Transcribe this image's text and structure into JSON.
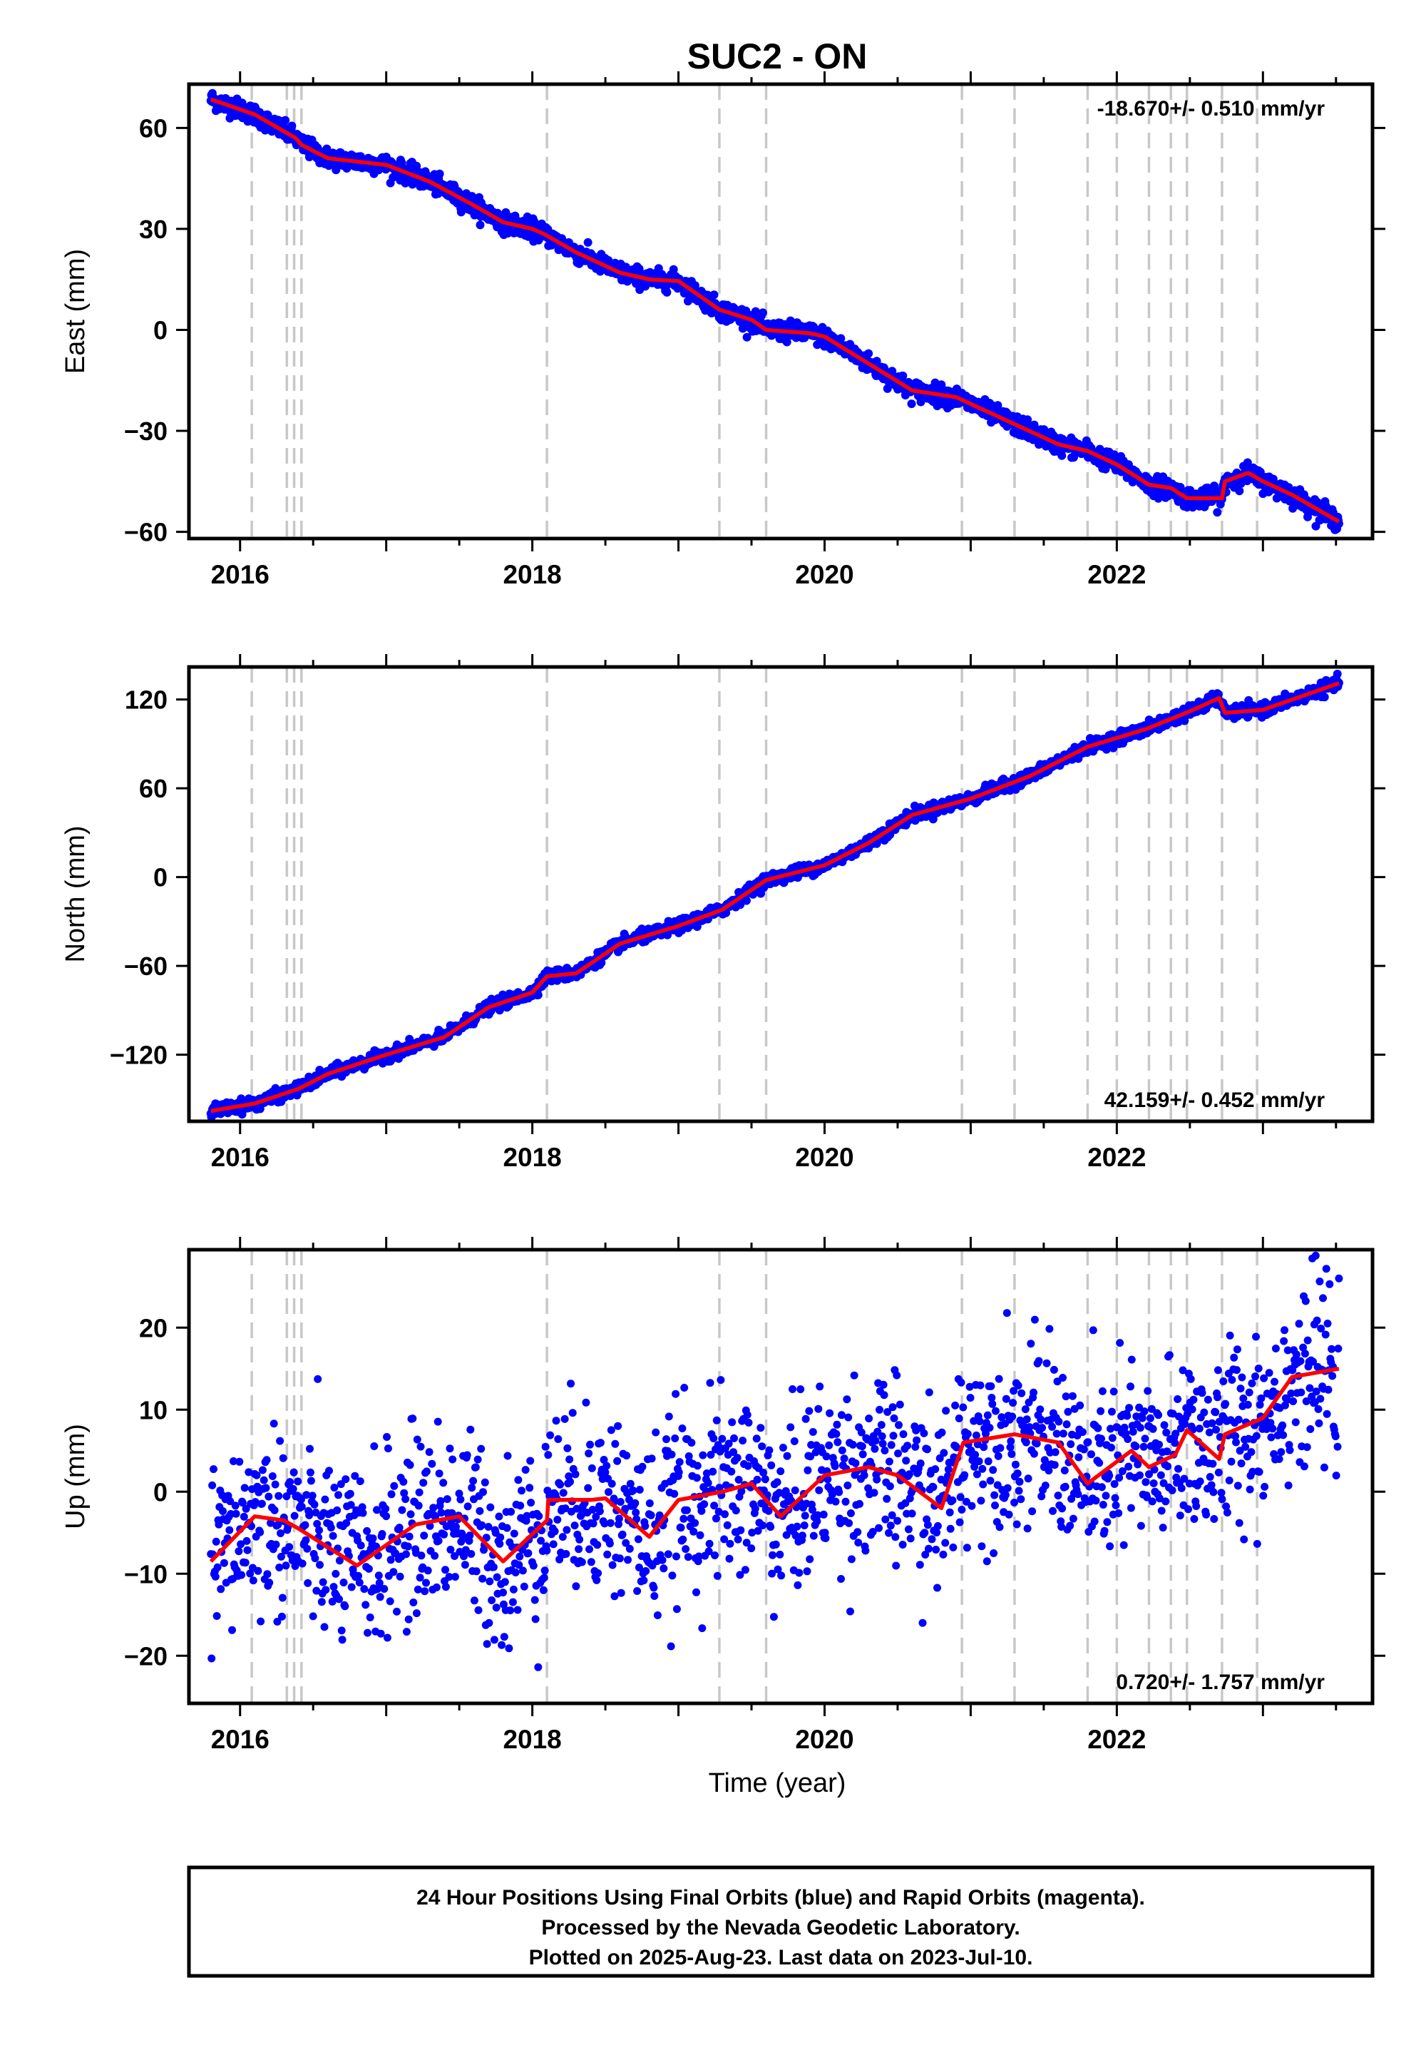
{
  "chart_data": {
    "type": "scatter",
    "title": "SUC2 - ON",
    "xlabel": "Time (year)",
    "x_ticks": [
      2016,
      2018,
      2020,
      2022
    ],
    "xlim": [
      2015.65,
      2023.75
    ],
    "data_start": 2015.8,
    "data_end": 2023.52,
    "equipment_change_lines": [
      2016.08,
      2016.32,
      2016.37,
      2016.42,
      2018.1,
      2019.28,
      2019.6,
      2020.94,
      2021.3,
      2021.8,
      2022.0,
      2022.22,
      2022.37,
      2022.48,
      2022.72,
      2022.96
    ],
    "colors": {
      "points": "#0000ff",
      "model": "#ff0000",
      "breaks": "#c8c8c8",
      "frame": "#000000"
    },
    "legend": "none",
    "panels": [
      {
        "key": "east",
        "ylabel": "East (mm)",
        "ylim": [
          -62,
          73
        ],
        "y_ticks": [
          "60",
          "30",
          "0",
          "−30",
          "−60"
        ],
        "y_tick_values": [
          60,
          30,
          0,
          -30,
          -60
        ],
        "rate_label": "-18.670+/- 0.510 mm/yr",
        "rate_position": "top-right",
        "noise_mm": 1.4,
        "model": [
          [
            2015.8,
            68.5
          ],
          [
            2016.1,
            64
          ],
          [
            2016.38,
            57
          ],
          [
            2016.42,
            55
          ],
          [
            2016.6,
            51
          ],
          [
            2017.0,
            49
          ],
          [
            2017.3,
            44
          ],
          [
            2017.6,
            37
          ],
          [
            2017.8,
            32
          ],
          [
            2018.0,
            30
          ],
          [
            2018.08,
            28.5
          ],
          [
            2018.3,
            23
          ],
          [
            2018.6,
            17
          ],
          [
            2018.8,
            15
          ],
          [
            2019.0,
            14.5
          ],
          [
            2019.28,
            6
          ],
          [
            2019.5,
            3
          ],
          [
            2019.6,
            0
          ],
          [
            2019.9,
            -1
          ],
          [
            2020.0,
            -2
          ],
          [
            2020.3,
            -10
          ],
          [
            2020.6,
            -18
          ],
          [
            2020.9,
            -20
          ],
          [
            2021.3,
            -28
          ],
          [
            2021.6,
            -34
          ],
          [
            2021.8,
            -36
          ],
          [
            2022.0,
            -40
          ],
          [
            2022.22,
            -46
          ],
          [
            2022.37,
            -47
          ],
          [
            2022.48,
            -50
          ],
          [
            2022.72,
            -50
          ],
          [
            2022.74,
            -45
          ],
          [
            2022.9,
            -42.5
          ],
          [
            2023.0,
            -45
          ],
          [
            2023.2,
            -49
          ],
          [
            2023.52,
            -57
          ]
        ]
      },
      {
        "key": "north",
        "ylabel": "North (mm)",
        "ylim": [
          -165,
          142
        ],
        "y_ticks": [
          "120",
          "60",
          "0",
          "−60",
          "−120"
        ],
        "y_tick_values": [
          120,
          60,
          0,
          -60,
          -120
        ],
        "rate_label": "42.159+/- 0.452 mm/yr",
        "rate_position": "bottom-right",
        "noise_mm": 2.0,
        "model": [
          [
            2015.8,
            -158
          ],
          [
            2016.1,
            -153
          ],
          [
            2016.4,
            -143
          ],
          [
            2016.6,
            -133
          ],
          [
            2017.0,
            -120
          ],
          [
            2017.4,
            -108
          ],
          [
            2017.7,
            -88
          ],
          [
            2018.0,
            -78
          ],
          [
            2018.1,
            -67
          ],
          [
            2018.3,
            -65
          ],
          [
            2018.6,
            -45
          ],
          [
            2019.0,
            -33
          ],
          [
            2019.3,
            -22
          ],
          [
            2019.6,
            -2
          ],
          [
            2020.0,
            8
          ],
          [
            2020.3,
            23
          ],
          [
            2020.6,
            42
          ],
          [
            2021.0,
            53
          ],
          [
            2021.4,
            68
          ],
          [
            2021.8,
            88
          ],
          [
            2022.2,
            100
          ],
          [
            2022.5,
            112
          ],
          [
            2022.7,
            121
          ],
          [
            2022.74,
            111
          ],
          [
            2023.0,
            113
          ],
          [
            2023.52,
            131
          ]
        ]
      },
      {
        "key": "up",
        "ylabel": "Up (mm)",
        "ylim": [
          -25.8,
          29.5
        ],
        "y_ticks": [
          "20",
          "10",
          "0",
          "−10",
          "−20"
        ],
        "y_tick_values": [
          20,
          10,
          0,
          -10,
          -20
        ],
        "rate_label": "0.720+/- 1.757 mm/yr",
        "rate_position": "bottom-right",
        "noise_mm": 5.5,
        "model": [
          [
            2015.8,
            -8.5
          ],
          [
            2016.1,
            -3
          ],
          [
            2016.3,
            -3.5
          ],
          [
            2016.4,
            -4.5
          ],
          [
            2016.8,
            -9
          ],
          [
            2017.2,
            -4
          ],
          [
            2017.5,
            -3
          ],
          [
            2017.8,
            -8.5
          ],
          [
            2018.1,
            -3.5
          ],
          [
            2018.11,
            -1
          ],
          [
            2018.4,
            -1
          ],
          [
            2018.5,
            -0.8
          ],
          [
            2018.8,
            -5.5
          ],
          [
            2019.0,
            -1
          ],
          [
            2019.3,
            0
          ],
          [
            2019.5,
            1
          ],
          [
            2019.7,
            -3
          ],
          [
            2020.0,
            2
          ],
          [
            2020.3,
            3
          ],
          [
            2020.5,
            2
          ],
          [
            2020.8,
            -2
          ],
          [
            2020.95,
            6
          ],
          [
            2021.3,
            7
          ],
          [
            2021.6,
            6
          ],
          [
            2021.8,
            1
          ],
          [
            2022.1,
            5
          ],
          [
            2022.22,
            3
          ],
          [
            2022.4,
            4.5
          ],
          [
            2022.48,
            7.5
          ],
          [
            2022.7,
            4
          ],
          [
            2022.74,
            7
          ],
          [
            2023.0,
            9
          ],
          [
            2023.2,
            14
          ],
          [
            2023.52,
            15
          ]
        ]
      }
    ]
  },
  "footer": {
    "line1": "24 Hour Positions Using Final Orbits (blue) and Rapid Orbits (magenta).",
    "line2": "Processed by the Nevada Geodetic Laboratory.",
    "line3": "Plotted on 2025-Aug-23. Last data on 2023-Jul-10."
  }
}
